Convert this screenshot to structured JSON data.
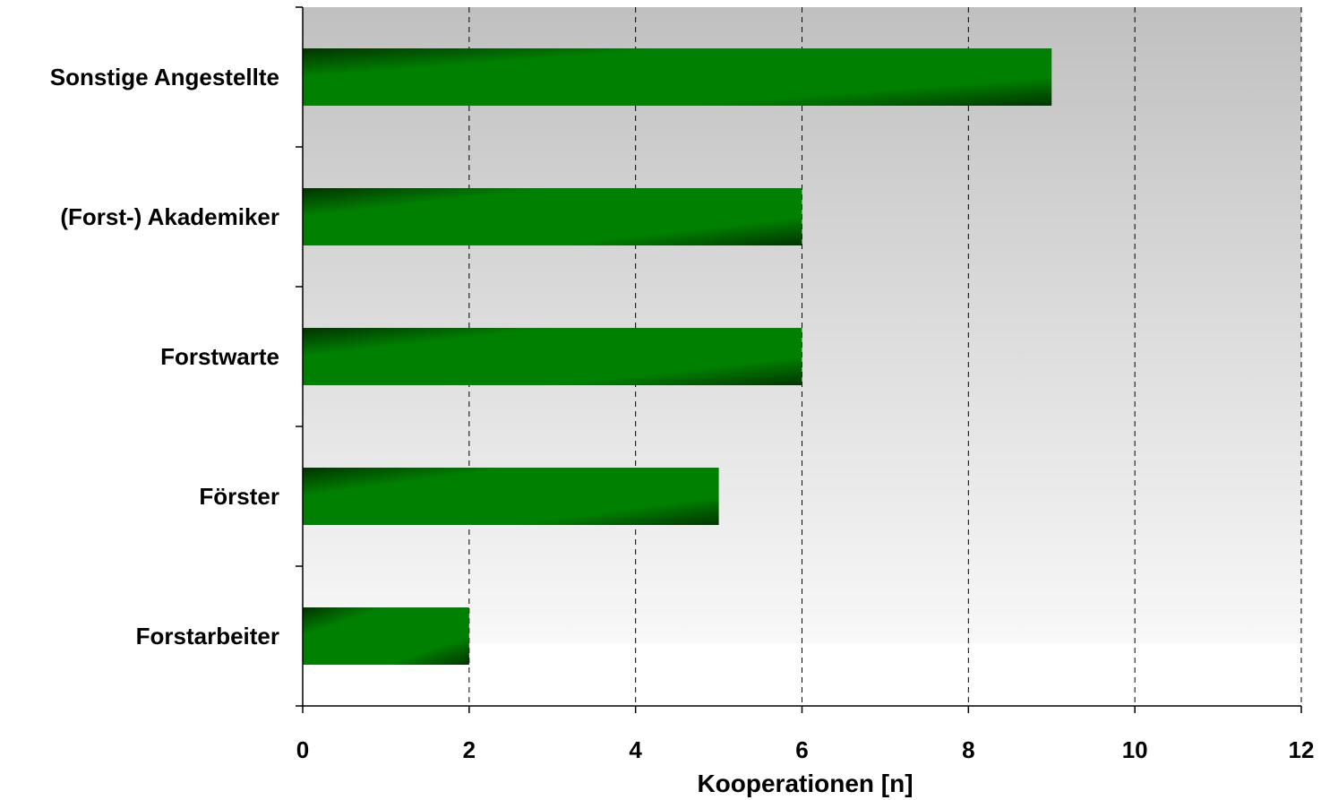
{
  "chart_data": {
    "type": "bar",
    "orientation": "horizontal",
    "title": "",
    "xlabel": "Kooperationen [n]",
    "ylabel": "",
    "xlim": [
      0,
      12
    ],
    "x_ticks": [
      0,
      2,
      4,
      6,
      8,
      10,
      12
    ],
    "grid": "vertical dashed",
    "legend": "none",
    "categories": [
      "Sonstige Angestellte",
      "(Forst-) Akademiker",
      "Forstwarte",
      "Förster",
      "Forstarbeiter"
    ],
    "values": [
      9,
      6,
      6,
      5,
      2
    ],
    "colors": {
      "bar_light": "#008000",
      "bar_dark": "#003300",
      "plot_bg_top": "#c0c0c0",
      "plot_bg_bottom": "#f8f8f8",
      "axis": "#000000"
    }
  }
}
